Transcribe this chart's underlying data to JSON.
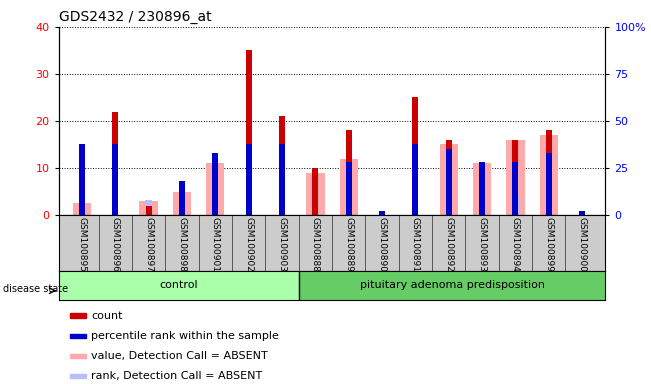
{
  "title": "GDS2432 / 230896_at",
  "samples": [
    "GSM100895",
    "GSM100896",
    "GSM100897",
    "GSM100898",
    "GSM100901",
    "GSM100902",
    "GSM100903",
    "GSM100888",
    "GSM100889",
    "GSM100890",
    "GSM100891",
    "GSM100892",
    "GSM100893",
    "GSM100894",
    "GSM100899",
    "GSM100900"
  ],
  "count": [
    1,
    22,
    2,
    5,
    12,
    35,
    21,
    10,
    18,
    0.3,
    25,
    16,
    11,
    16,
    18,
    0.3
  ],
  "percentile": [
    38,
    38,
    0,
    18,
    33,
    38,
    38,
    0,
    28,
    2,
    38,
    35,
    28,
    28,
    33,
    2
  ],
  "absent_value": [
    2.5,
    0,
    3,
    5,
    11,
    0,
    0,
    9,
    12,
    0,
    0,
    15,
    11,
    16,
    17,
    0
  ],
  "absent_rank": [
    6,
    0,
    8,
    17,
    0,
    0,
    0,
    0,
    0,
    0,
    0,
    13,
    10,
    10,
    13,
    0
  ],
  "n_control": 7,
  "ylim_left": [
    0,
    40
  ],
  "ylim_right": [
    0,
    100
  ],
  "left_ticks": [
    0,
    10,
    20,
    30,
    40
  ],
  "right_ticks": [
    0,
    25,
    50,
    75,
    100
  ],
  "right_tick_labels": [
    "0",
    "25",
    "50",
    "75",
    "100%"
  ],
  "color_count": "#cc0000",
  "color_percentile": "#0000cc",
  "color_absent_value": "#ffaaaa",
  "color_absent_rank": "#bbbbff",
  "color_bg_labels": "#cccccc",
  "color_control_group": "#aaffaa",
  "color_pituitary_group": "#66cc66",
  "legend_items": [
    "count",
    "percentile rank within the sample",
    "value, Detection Call = ABSENT",
    "rank, Detection Call = ABSENT"
  ],
  "legend_colors": [
    "#cc0000",
    "#0000cc",
    "#ffaaaa",
    "#bbbbff"
  ],
  "legend_markers": [
    "s",
    "s",
    "s",
    "s"
  ]
}
